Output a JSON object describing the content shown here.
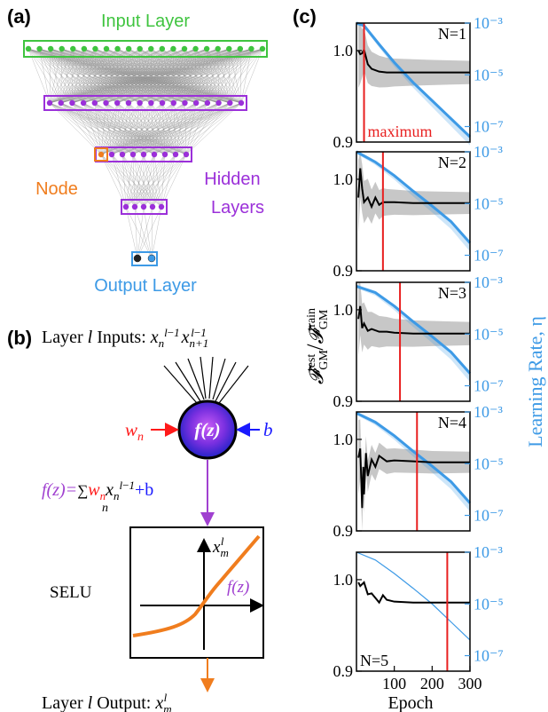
{
  "panel_labels": {
    "a": "(a)",
    "b": "(b)",
    "c": "(c)"
  },
  "panel_a": {
    "input_layer": "Input Layer",
    "hidden_layers_line1": "Hidden",
    "hidden_layers_line2": "Layers",
    "node": "Node",
    "output_layer": "Output Layer",
    "colors": {
      "input": "#3fc43f",
      "hidden": "#9b30d9",
      "node": "#f07d1e",
      "output": "#3d9ae6"
    }
  },
  "panel_b": {
    "inputs_prefix": "Layer ",
    "inputs_l": "l",
    "inputs_suffix": " Inputs: ",
    "neuron_label": "f(z)",
    "weight": "w",
    "weight_sub": "n",
    "bias": "b",
    "formula_lhs": "f(z)=",
    "formula_sum": "∑",
    "formula_sum_sub": "n",
    "formula_plus": "+b",
    "activation_name": "SELU",
    "plot_ylabel": "x",
    "plot_curve_label": "f(z)",
    "output_prefix": "Layer ",
    "output_l": "l",
    "output_suffix": " Output: ",
    "colors": {
      "weight": "#ff1a1a",
      "bias": "#1a1aff",
      "formula": "#a040d0",
      "curve": "#f07d1e"
    }
  },
  "panel_c": {
    "ylabel_left": "𝓕",
    "ylabel_right": "Learning Rate, η",
    "xlabel": "Epoch",
    "max_annotation": "maximum",
    "colors": {
      "fidelity": "#000000",
      "lr": "#3d9ae6",
      "max_line": "#e81f1f",
      "band": "#bdbdbd"
    }
  },
  "chart_data": [
    {
      "type": "line",
      "title": "N=1",
      "x_range": [
        0,
        300
      ],
      "ylim": [
        0.9,
        1.03
      ],
      "yticks": [
        "1.0",
        "0.9"
      ],
      "y2_ticks": [
        "10⁻³",
        "10⁻⁵",
        "10⁻⁷"
      ],
      "y2_scale": "log",
      "maximum_epoch": 20,
      "series": [
        {
          "x": [
            5,
            10,
            15,
            20,
            30,
            40,
            60,
            80,
            100,
            150,
            200,
            250,
            300
          ],
          "y": [
            1.0,
            0.996,
            0.997,
            1.001,
            0.985,
            0.98,
            0.977,
            0.976,
            0.976,
            0.976,
            0.976,
            0.976,
            0.976
          ]
        },
        {
          "x": [
            0,
            20,
            60,
            100,
            150,
            200,
            250,
            300
          ],
          "y": [
            0.001,
            0.0008,
            0.00015,
            3e-05,
            5e-06,
            1e-06,
            2e-07,
            4e-08
          ]
        }
      ]
    },
    {
      "type": "line",
      "title": "N=2",
      "x_range": [
        0,
        300
      ],
      "ylim": [
        0.9,
        1.03
      ],
      "yticks": [
        "1.0",
        "0.9"
      ],
      "y2_ticks": [
        "10⁻³",
        "10⁻⁵",
        "10⁻⁷"
      ],
      "y2_scale": "log",
      "maximum_epoch": 70,
      "series": [
        {
          "x": [
            5,
            10,
            15,
            20,
            30,
            40,
            50,
            60,
            70,
            80,
            100,
            150,
            200,
            250,
            300
          ],
          "y": [
            0.98,
            1.012,
            0.99,
            0.975,
            0.98,
            0.97,
            0.98,
            0.972,
            0.975,
            0.975,
            0.975,
            0.974,
            0.974,
            0.974,
            0.974
          ]
        },
        {
          "x": [
            0,
            50,
            100,
            150,
            200,
            250,
            300
          ],
          "y": [
            0.001,
            0.0004,
            0.00012,
            3e-05,
            8e-06,
            2e-06,
            3e-07
          ]
        }
      ]
    },
    {
      "type": "line",
      "title": "N=3",
      "x_range": [
        0,
        300
      ],
      "ylim": [
        0.9,
        1.03
      ],
      "yticks": [
        "1.0",
        "0.9"
      ],
      "y2_ticks": [
        "10⁻³",
        "10⁻⁵",
        "10⁻⁷"
      ],
      "y2_scale": "log",
      "maximum_epoch": 115,
      "series": [
        {
          "x": [
            5,
            10,
            15,
            20,
            30,
            40,
            60,
            80,
            100,
            150,
            200,
            250,
            300
          ],
          "y": [
            0.99,
            1.004,
            0.98,
            0.985,
            0.977,
            0.979,
            0.976,
            0.976,
            0.975,
            0.974,
            0.974,
            0.974,
            0.974
          ]
        },
        {
          "x": [
            0,
            50,
            100,
            150,
            200,
            250,
            300
          ],
          "y": [
            0.0007,
            0.0004,
            0.00012,
            3e-05,
            8e-06,
            2e-06,
            3e-07
          ]
        }
      ]
    },
    {
      "type": "line",
      "title": "N=4",
      "x_range": [
        0,
        300
      ],
      "ylim": [
        0.9,
        1.03
      ],
      "yticks": [
        "1.0",
        "0.9"
      ],
      "y2_ticks": [
        "10⁻³",
        "10⁻⁵",
        "10⁻⁷"
      ],
      "y2_scale": "log",
      "maximum_epoch": 160,
      "series": [
        {
          "x": [
            5,
            10,
            15,
            18,
            20,
            25,
            30,
            40,
            50,
            60,
            80,
            100,
            150,
            200,
            250,
            300
          ],
          "y": [
            0.98,
            0.99,
            0.925,
            0.97,
            0.94,
            0.985,
            0.96,
            0.978,
            0.97,
            0.982,
            0.976,
            0.977,
            0.976,
            0.975,
            0.975,
            0.975
          ]
        },
        {
          "x": [
            0,
            50,
            100,
            150,
            200,
            250,
            300
          ],
          "y": [
            0.0009,
            0.0004,
            0.00012,
            3e-05,
            8e-06,
            2e-06,
            3e-07
          ]
        }
      ]
    },
    {
      "type": "line",
      "title": "N=5",
      "x_range": [
        0,
        300
      ],
      "ylim": [
        0.9,
        1.03
      ],
      "yticks": [
        "1.0",
        "0.9"
      ],
      "y2_ticks": [
        "10⁻³",
        "10⁻⁵",
        "10⁻⁷"
      ],
      "y2_scale": "log",
      "maximum_epoch": 240,
      "xticks": [
        "100",
        "200",
        "300"
      ],
      "xlabel": "Epoch",
      "series": [
        {
          "x": [
            5,
            10,
            20,
            30,
            40,
            50,
            60,
            70,
            80,
            100,
            150,
            200,
            250,
            300
          ],
          "y": [
            0.997,
            0.993,
            0.997,
            0.984,
            0.985,
            0.98,
            0.975,
            0.983,
            0.978,
            0.976,
            0.975,
            0.975,
            0.975,
            0.975
          ]
        },
        {
          "x": [
            0,
            50,
            100,
            150,
            200,
            250,
            300
          ],
          "y": [
            0.001,
            0.0005,
            0.00015,
            4e-05,
            1e-05,
            2e-06,
            4e-07
          ]
        }
      ]
    }
  ]
}
